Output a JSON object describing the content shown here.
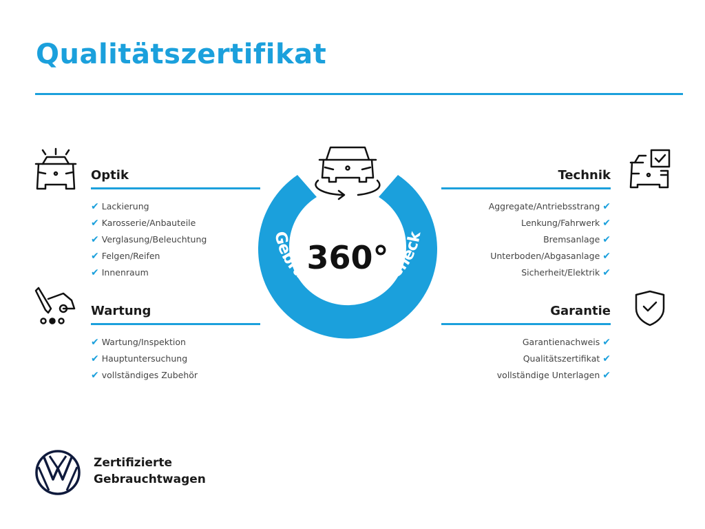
{
  "title": "Qualitätszertifikat",
  "accent_color": "#1ba0dc",
  "center": {
    "degrees": "360°",
    "ring_text": "Gebrauchtwagen-Check",
    "icon": "car-rotate-icon"
  },
  "sections": {
    "optik": {
      "title": "Optik",
      "icon": "car-lights-icon",
      "items": [
        "Lackierung",
        "Karosserie/Anbauteile",
        "Verglasung/Beleuchtung",
        "Felgen/Reifen",
        "Innenraum"
      ]
    },
    "wartung": {
      "title": "Wartung",
      "icon": "service-van-icon",
      "items": [
        "Wartung/Inspektion",
        "Hauptuntersuchung",
        "vollständiges Zubehör"
      ]
    },
    "technik": {
      "title": "Technik",
      "icon": "car-checkbox-icon",
      "items": [
        "Aggregate/Antriebsstrang",
        "Lenkung/Fahrwerk",
        "Bremsanlage",
        "Unterboden/Abgasanlage",
        "Sicherheit/Elektrik"
      ]
    },
    "garantie": {
      "title": "Garantie",
      "icon": "shield-check-icon",
      "items": [
        "Garantienachweis",
        "Qualitätszertifikat",
        "vollständige Unterlagen"
      ]
    }
  },
  "check_glyph": "✔",
  "footer": {
    "line1": "Zertifizierte",
    "line2": "Gebrauchtwagen",
    "logo": "vw-logo-icon"
  }
}
